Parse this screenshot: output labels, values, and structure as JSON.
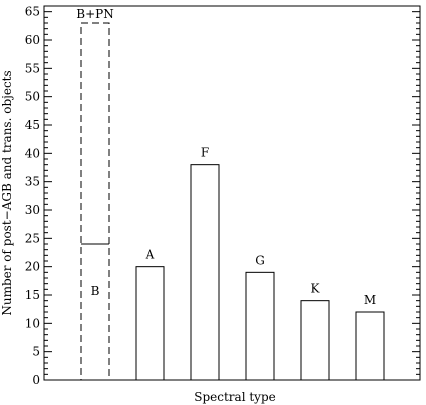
{
  "chart_data": {
    "type": "bar",
    "xlabel": "Spectral type",
    "ylabel": "Number of post−AGB and trans. objects",
    "ylim": [
      0,
      66
    ],
    "yticks_major": [
      0,
      5,
      10,
      15,
      20,
      25,
      30,
      35,
      40,
      45,
      50,
      55,
      60,
      65
    ],
    "ytick_minor_step": 1,
    "categories": [
      "B",
      "A",
      "F",
      "G",
      "K",
      "M"
    ],
    "values": [
      24,
      20,
      38,
      19,
      14,
      12
    ],
    "bar_labels": [
      "B",
      "A",
      "F",
      "G",
      "K",
      "M"
    ],
    "extra_bar": {
      "category": "B",
      "label": "B+PN",
      "value": 63,
      "style": "dashed"
    },
    "grid": false,
    "legend": false
  }
}
